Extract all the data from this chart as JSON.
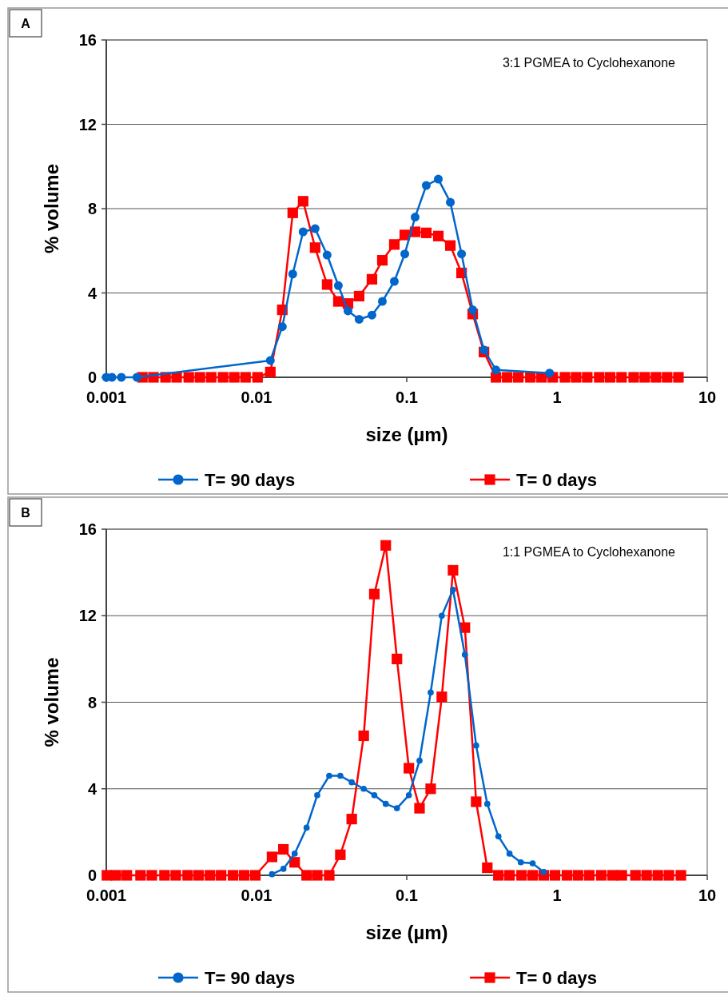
{
  "chart_data": [
    {
      "type": "line",
      "title": "A",
      "xlabel": "size (µm)",
      "ylabel": "% volume",
      "annotations": [
        "3:1 PGMEA to Cyclohexanone"
      ],
      "log": "x",
      "xlim": [
        0.001,
        10
      ],
      "xticks": [
        0.001,
        0.01,
        0.1,
        1,
        10
      ],
      "ylim": [
        0,
        16
      ],
      "yticks": [
        0,
        4,
        8,
        12,
        16
      ],
      "grid": "y",
      "legend": "bottom",
      "line_style": "solid",
      "series": [
        {
          "name": "T= 90 days",
          "color": "#0066cc",
          "marker": "circle",
          "x": [
            0.001,
            0.00109,
            0.00126,
            0.0016,
            0.01236,
            0.01485,
            0.01742,
            0.02043,
            0.02455,
            0.02951,
            0.03506,
            0.04061,
            0.0482,
            0.05866,
            0.0688,
            0.08266,
            0.09701,
            0.1137,
            0.1349,
            0.1622,
            0.195,
            0.2316,
            0.2748,
            0.3265,
            0.3925,
            0.893
          ],
          "values": [
            0,
            0,
            0,
            0,
            0.8,
            2.4,
            4.9,
            6.9,
            7.05,
            5.8,
            4.35,
            3.15,
            2.75,
            2.95,
            3.6,
            4.55,
            5.85,
            7.6,
            9.1,
            9.4,
            8.3,
            5.85,
            3.2,
            1.3,
            0.35,
            0.2
          ]
        },
        {
          "name": "T= 0 days",
          "color": "#ff0000",
          "marker": "square",
          "x": [
            0.00174,
            0.00206,
            0.00248,
            0.00294,
            0.00354,
            0.0042,
            0.00499,
            0.00599,
            0.00711,
            0.00845,
            0.01016,
            0.01236,
            0.01485,
            0.01742,
            0.02043,
            0.02455,
            0.02951,
            0.03506,
            0.04061,
            0.0482,
            0.05866,
            0.0688,
            0.08266,
            0.09701,
            0.1137,
            0.1349,
            0.1622,
            0.195,
            0.2316,
            0.2748,
            0.3265,
            0.3925,
            0.466,
            0.553,
            0.665,
            0.789,
            0.937,
            1.13,
            1.34,
            1.59,
            1.91,
            2.26,
            2.69,
            3.24,
            3.84,
            4.56,
            5.41,
            6.43
          ],
          "values": [
            0,
            0,
            0,
            0,
            0,
            0,
            0,
            0,
            0,
            0,
            0,
            0.25,
            3.2,
            7.8,
            8.35,
            6.15,
            4.4,
            3.6,
            3.5,
            3.85,
            4.65,
            5.55,
            6.3,
            6.75,
            6.9,
            6.85,
            6.7,
            6.25,
            4.95,
            3.0,
            1.2,
            0,
            0,
            0,
            0,
            0,
            0,
            0,
            0,
            0,
            0,
            0,
            0,
            0,
            0,
            0,
            0,
            0
          ]
        }
      ]
    },
    {
      "type": "line",
      "title": "B",
      "xlabel": "size (µm)",
      "ylabel": "% volume",
      "annotations": [
        "1:1 PGMEA to Cyclohexanone"
      ],
      "log": "x",
      "xlim": [
        0.001,
        10
      ],
      "xticks": [
        0.001,
        0.01,
        0.1,
        1,
        10
      ],
      "ylim": [
        0,
        16
      ],
      "yticks": [
        0,
        4,
        8,
        12,
        16
      ],
      "grid": "y",
      "legend": "bottom",
      "line_style": "solid",
      "series": [
        {
          "name": "T= 90 days",
          "color": "#0066cc",
          "marker": "circle",
          "x": [
            0.01268,
            0.0151,
            0.01794,
            0.02155,
            0.02536,
            0.03048,
            0.03614,
            0.04303,
            0.05172,
            0.06083,
            0.0725,
            0.08604,
            0.1033,
            0.1216,
            0.1443,
            0.1711,
            0.2032,
            0.2438,
            0.2897,
            0.3436,
            0.4074,
            0.4831,
            0.5741,
            0.6887,
            0.8166
          ],
          "values": [
            0.05,
            0.3,
            1.0,
            2.2,
            3.7,
            4.6,
            4.6,
            4.3,
            4.0,
            3.7,
            3.3,
            3.1,
            3.7,
            5.3,
            8.45,
            12.0,
            13.2,
            10.2,
            6.0,
            3.3,
            1.8,
            1.0,
            0.6,
            0.55,
            0.15
          ]
        },
        {
          "name": "T= 0 days",
          "color": "#ff0000",
          "marker": "square",
          "x": [
            0.00101,
            0.00116,
            0.00137,
            0.00169,
            0.00201,
            0.00244,
            0.0029,
            0.00348,
            0.00412,
            0.0049,
            0.00581,
            0.00698,
            0.00828,
            0.00982,
            0.01268,
            0.0151,
            0.01794,
            0.02155,
            0.02536,
            0.03048,
            0.03614,
            0.04303,
            0.05172,
            0.06083,
            0.0725,
            0.08604,
            0.1033,
            0.1216,
            0.1443,
            0.1711,
            0.2032,
            0.2438,
            0.2897,
            0.3436,
            0.4074,
            0.4831,
            0.581,
            0.689,
            0.817,
            0.97,
            1.165,
            1.38,
            1.64,
            1.97,
            2.34,
            2.7,
            3.33,
            3.95,
            4.69,
            5.56,
            6.68
          ],
          "values": [
            0,
            0,
            0,
            0,
            0,
            0,
            0,
            0,
            0,
            0,
            0,
            0,
            0,
            0,
            0.85,
            1.2,
            0.6,
            0,
            0,
            0,
            0.95,
            2.6,
            6.45,
            13.0,
            15.25,
            10.0,
            4.95,
            3.1,
            4.0,
            8.25,
            14.1,
            11.45,
            3.4,
            0.35,
            0,
            0,
            0,
            0,
            0,
            0,
            0,
            0,
            0,
            0,
            0,
            0,
            0,
            0,
            0,
            0,
            0
          ]
        }
      ]
    }
  ]
}
